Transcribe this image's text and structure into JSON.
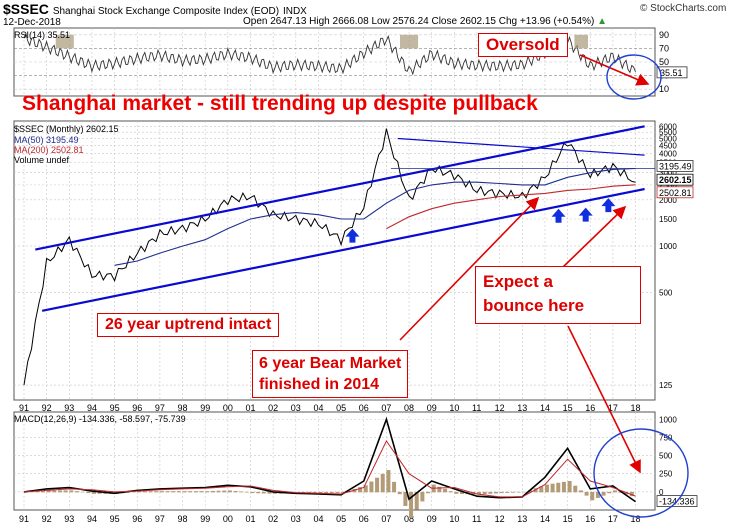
{
  "header": {
    "symbol": "$SSEC",
    "name": "Shanghai Stock Exchange Composite Index (EOD)",
    "exchange": "INDX",
    "date": "12-Dec-2018",
    "ohlc": "Open 2647.13  High 2666.08  Low 2576.24  Close 2602.15  Chg +13.96 (+0.54%)",
    "change_suffix": "▲",
    "brand": "© StockCharts.com"
  },
  "rsi_panel": {
    "label": "RSI(14) 35.51",
    "ticks": [
      "90",
      "70",
      "50",
      "30",
      "10"
    ],
    "current_value_label": "35.51"
  },
  "price_panel": {
    "legend_main": "$SSEC (Monthly) 2602.15",
    "legend_ma50": "MA(50) 3195.49",
    "legend_ma200": "MA(200) 2502.81",
    "legend_volume": "Volume undef",
    "ticks": [
      "6000",
      "5500",
      "5000",
      "4500",
      "4000",
      "3500",
      "3000",
      "2500",
      "2000",
      "1500",
      "1000",
      "500",
      "125"
    ],
    "ma50_badge": "3195.49",
    "close_badge": "2602.15",
    "ma200_badge": "2502.81"
  },
  "macd_panel": {
    "label": "MACD(12,26,9) -134.336, -58.597, -75.739",
    "ticks": [
      "1000",
      "750",
      "500",
      "250",
      "0"
    ],
    "current_value_label": "-134.336"
  },
  "x_axis": {
    "labels": [
      "91",
      "92",
      "93",
      "94",
      "95",
      "96",
      "97",
      "98",
      "99",
      "00",
      "01",
      "02",
      "03",
      "04",
      "05",
      "06",
      "07",
      "08",
      "09",
      "10",
      "11",
      "12",
      "13",
      "14",
      "15",
      "16",
      "17",
      "18"
    ]
  },
  "annotations": {
    "title": "Shanghai market - still trending up despite pullback",
    "oversold": "Oversold",
    "uptrend": "26 year uptrend intact",
    "bear_line1": "6 year Bear Market",
    "bear_line2": "finished in 2014",
    "bounce_line1": "Expect a",
    "bounce_line2": "bounce here"
  },
  "colors": {
    "price_line": "#000000",
    "ma50": "#1f2e8f",
    "ma200": "#c0282d",
    "channel": "#0a0ad0",
    "annotation": "#e00000",
    "grid": "#c8c8c8",
    "rsi_fill_overbought": "#a89a7a"
  },
  "chart_data": [
    {
      "type": "line",
      "title": "RSI(14) 35.51",
      "x": [
        "91",
        "92",
        "93",
        "94",
        "95",
        "96",
        "97",
        "98",
        "99",
        "00",
        "01",
        "02",
        "03",
        "04",
        "05",
        "06",
        "07",
        "08",
        "09",
        "10",
        "11",
        "12",
        "13",
        "14",
        "15",
        "16",
        "17",
        "18"
      ],
      "series": [
        {
          "name": "RSI(14)",
          "values": [
            85,
            72,
            58,
            44,
            48,
            55,
            60,
            52,
            54,
            62,
            56,
            42,
            46,
            44,
            40,
            63,
            84,
            36,
            62,
            48,
            45,
            44,
            46,
            63,
            82,
            44,
            58,
            35.51
          ]
        }
      ],
      "ylim": [
        0,
        100
      ],
      "grid": true
    },
    {
      "type": "line",
      "title": "$SSEC (Monthly) 2602.15",
      "scale": "log",
      "x": [
        "91",
        "92",
        "93",
        "94",
        "95",
        "96",
        "97",
        "98",
        "99",
        "00",
        "01",
        "02",
        "03",
        "04",
        "05",
        "06",
        "07",
        "08",
        "09",
        "10",
        "11",
        "12",
        "13",
        "14",
        "15",
        "16",
        "17",
        "18"
      ],
      "series": [
        {
          "name": "$SSEC (Monthly) 2602.15",
          "values": [
            125,
            780,
            1100,
            650,
            640,
            900,
            1200,
            1300,
            1500,
            2000,
            2100,
            1600,
            1500,
            1400,
            1100,
            1800,
            5500,
            2000,
            3200,
            2900,
            2300,
            2200,
            2100,
            2800,
            4800,
            2900,
            3300,
            2602.15
          ]
        },
        {
          "name": "MA(50) 3195.49",
          "values": [
            null,
            null,
            null,
            null,
            750,
            800,
            900,
            1000,
            1100,
            1300,
            1500,
            1600,
            1650,
            1600,
            1500,
            1500,
            1900,
            2300,
            2500,
            2600,
            2600,
            2550,
            2500,
            2500,
            2800,
            3000,
            3150,
            3195.49
          ]
        },
        {
          "name": "MA(200) 2502.81",
          "values": [
            null,
            null,
            null,
            null,
            null,
            null,
            null,
            null,
            null,
            null,
            null,
            null,
            null,
            null,
            null,
            null,
            1300,
            1550,
            1750,
            1900,
            2000,
            2100,
            2150,
            2200,
            2300,
            2350,
            2450,
            2502.81
          ]
        }
      ],
      "ylim": [
        100,
        6500
      ],
      "grid": true
    },
    {
      "type": "line",
      "title": "MACD(12,26,9) -134.336, -58.597, -75.739",
      "x": [
        "91",
        "92",
        "93",
        "94",
        "95",
        "96",
        "97",
        "98",
        "99",
        "00",
        "01",
        "02",
        "03",
        "04",
        "05",
        "06",
        "07",
        "08",
        "09",
        "10",
        "11",
        "12",
        "13",
        "14",
        "15",
        "16",
        "17",
        "18"
      ],
      "series": [
        {
          "name": "MACD",
          "values": [
            0,
            40,
            60,
            10,
            -20,
            20,
            40,
            50,
            60,
            90,
            70,
            0,
            -20,
            -30,
            -40,
            150,
            1000,
            -100,
            150,
            40,
            -60,
            -80,
            -70,
            200,
            600,
            40,
            80,
            -134.336
          ]
        },
        {
          "name": "Signal",
          "values": [
            0,
            20,
            40,
            30,
            0,
            10,
            30,
            40,
            50,
            70,
            80,
            20,
            -10,
            -20,
            -30,
            60,
            700,
            250,
            50,
            60,
            -30,
            -70,
            -70,
            100,
            450,
            150,
            60,
            -58.597
          ]
        },
        {
          "name": "Histogram",
          "values": [
            0,
            20,
            20,
            -20,
            -20,
            10,
            10,
            10,
            10,
            20,
            -10,
            -20,
            -10,
            -10,
            -10,
            90,
            300,
            -350,
            100,
            -20,
            -30,
            -10,
            0,
            100,
            150,
            -110,
            20,
            -75.739
          ]
        }
      ],
      "ylim": [
        -250,
        1100
      ],
      "grid": true
    }
  ]
}
